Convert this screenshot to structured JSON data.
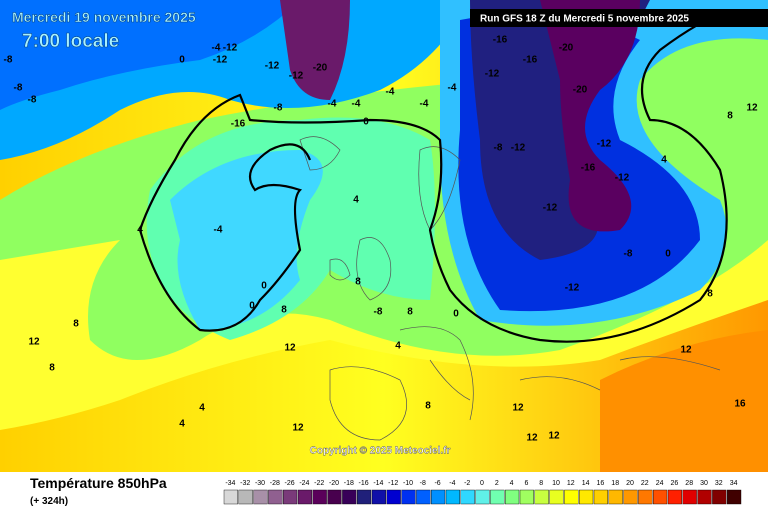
{
  "header": {
    "title": "Mercredi 19 novembre 2025",
    "time": "7:00 locale",
    "run": "Run GFS 18 Z du Mercredi 5 novembre 2025"
  },
  "footer": {
    "title": "Température 850hPa",
    "lead": "(+ 324h)",
    "copyright": "Copyright © 2025 Meteociel.fr"
  },
  "legend": {
    "ticks": [
      -34,
      -32,
      -30,
      -28,
      -26,
      -24,
      -22,
      -20,
      -18,
      -16,
      -14,
      -12,
      -10,
      -8,
      -6,
      -4,
      -2,
      0,
      2,
      4,
      6,
      8,
      10,
      12,
      14,
      16,
      18,
      20,
      22,
      24,
      26,
      28,
      30,
      32,
      34
    ],
    "colors": [
      "#d8d8d8",
      "#b8b8b8",
      "#a890a8",
      "#906090",
      "#7a3a7a",
      "#6a1a6a",
      "#5a005a",
      "#48004e",
      "#380058",
      "#20207a",
      "#1010a8",
      "#0000d0",
      "#0030f0",
      "#0060ff",
      "#0090ff",
      "#00b8ff",
      "#30d8ff",
      "#60f0e8",
      "#70ffb0",
      "#80ff80",
      "#a0ff60",
      "#c8ff40",
      "#e8ff20",
      "#ffff00",
      "#ffe800",
      "#ffd000",
      "#ffb800",
      "#ff9800",
      "#ff7800",
      "#ff5000",
      "#ff2000",
      "#e00000",
      "#b00000",
      "#800000",
      "#400000"
    ]
  },
  "contour_labels": [
    -8,
    -8,
    -8,
    -4,
    -12,
    0,
    -12,
    -12,
    -12,
    -20,
    -16,
    -8,
    -4,
    -4,
    -4,
    -4,
    -4,
    0,
    -12,
    -16,
    -20,
    -16,
    -20,
    -8,
    -12,
    -12,
    -16,
    -12,
    -12,
    -8,
    -12,
    0,
    4,
    -4,
    0,
    0,
    8,
    4,
    8,
    8,
    -8,
    0,
    4,
    12,
    12,
    8,
    8,
    4,
    4,
    12,
    8,
    12,
    12,
    12,
    12,
    16,
    8,
    12,
    8,
    4
  ]
}
